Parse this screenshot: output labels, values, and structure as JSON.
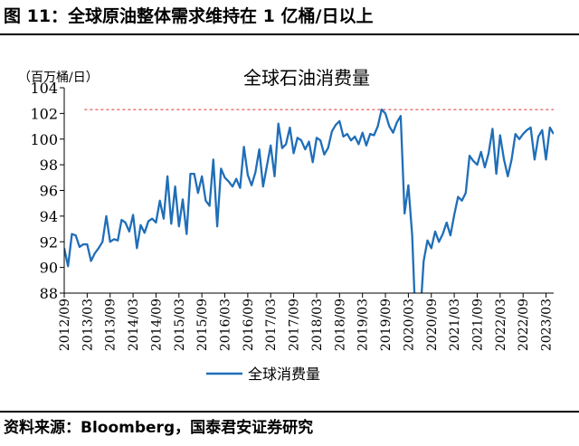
{
  "figure": {
    "title": "图 11：全球原油整体需求维持在 1 亿桶/日以上",
    "source": "资料来源：Bloomberg，国泰君安证券研究"
  },
  "colors": {
    "series": "#1f6eb8",
    "reference": "#e03030"
  },
  "chart_data": {
    "type": "line",
    "title": "全球石油消费量",
    "ylabel": "（百万桶/日）",
    "xlabel": "",
    "ylim": [
      88,
      104
    ],
    "yticks": [
      88,
      90,
      92,
      94,
      96,
      98,
      100,
      102,
      104
    ],
    "xlim": [
      "2012/09",
      "2023/05"
    ],
    "xticks": [
      "2012/09",
      "2013/03",
      "2013/09",
      "2014/03",
      "2014/09",
      "2015/03",
      "2015/09",
      "2016/03",
      "2016/09",
      "2017/03",
      "2017/09",
      "2018/03",
      "2018/09",
      "2019/03",
      "2019/09",
      "2020/03",
      "2020/09",
      "2021/03",
      "2021/09",
      "2022/03",
      "2022/09",
      "2023/03"
    ],
    "legend": {
      "position": "bottom",
      "entries": [
        "全球消费量"
      ]
    },
    "reference_line": {
      "y": 102.3,
      "style": "dashed"
    },
    "series": [
      {
        "name": "全球消费量",
        "x": [
          "2012/09",
          "2012/10",
          "2012/11",
          "2012/12",
          "2013/01",
          "2013/02",
          "2013/03",
          "2013/04",
          "2013/05",
          "2013/06",
          "2013/07",
          "2013/08",
          "2013/09",
          "2013/10",
          "2013/11",
          "2013/12",
          "2014/01",
          "2014/02",
          "2014/03",
          "2014/04",
          "2014/05",
          "2014/06",
          "2014/07",
          "2014/08",
          "2014/09",
          "2014/10",
          "2014/11",
          "2014/12",
          "2015/01",
          "2015/02",
          "2015/03",
          "2015/04",
          "2015/05",
          "2015/06",
          "2015/07",
          "2015/08",
          "2015/09",
          "2015/10",
          "2015/11",
          "2015/12",
          "2016/01",
          "2016/02",
          "2016/03",
          "2016/04",
          "2016/05",
          "2016/06",
          "2016/07",
          "2016/08",
          "2016/09",
          "2016/10",
          "2016/11",
          "2016/12",
          "2017/01",
          "2017/02",
          "2017/03",
          "2017/04",
          "2017/05",
          "2017/06",
          "2017/07",
          "2017/08",
          "2017/09",
          "2017/10",
          "2017/11",
          "2017/12",
          "2018/01",
          "2018/02",
          "2018/03",
          "2018/04",
          "2018/05",
          "2018/06",
          "2018/07",
          "2018/08",
          "2018/09",
          "2018/10",
          "2018/11",
          "2018/12",
          "2019/01",
          "2019/02",
          "2019/03",
          "2019/04",
          "2019/05",
          "2019/06",
          "2019/07",
          "2019/08",
          "2019/09",
          "2019/10",
          "2019/11",
          "2019/12",
          "2020/01",
          "2020/02",
          "2020/03",
          "2020/04",
          "2020/05",
          "2020/06",
          "2020/07",
          "2020/08",
          "2020/09",
          "2020/10",
          "2020/11",
          "2020/12",
          "2021/01",
          "2021/02",
          "2021/03",
          "2021/04",
          "2021/05",
          "2021/06",
          "2021/07",
          "2021/08",
          "2021/09",
          "2021/10",
          "2021/11",
          "2021/12",
          "2022/01",
          "2022/02",
          "2022/03",
          "2022/04",
          "2022/05",
          "2022/06",
          "2022/07",
          "2022/08",
          "2022/09",
          "2022/10",
          "2022/11",
          "2022/12",
          "2023/01",
          "2023/02",
          "2023/03",
          "2023/04",
          "2023/05"
        ],
        "values": [
          91.5,
          90.1,
          92.6,
          92.5,
          91.6,
          91.8,
          91.8,
          90.5,
          91.1,
          91.5,
          92.0,
          94.0,
          92.0,
          92.2,
          92.1,
          93.7,
          93.5,
          92.8,
          94.1,
          91.5,
          93.3,
          92.7,
          93.6,
          93.8,
          93.5,
          95.2,
          93.8,
          97.1,
          93.4,
          96.3,
          93.2,
          95.3,
          92.6,
          97.3,
          97.3,
          95.8,
          97.1,
          95.2,
          94.8,
          98.4,
          93.2,
          97.7,
          97.0,
          96.7,
          96.3,
          96.9,
          96.2,
          99.4,
          97.2,
          96.4,
          97.4,
          99.2,
          96.3,
          97.9,
          99.5,
          97.1,
          101.2,
          99.3,
          99.6,
          100.9,
          98.9,
          100.1,
          99.9,
          99.2,
          99.8,
          98.2,
          100.1,
          99.9,
          98.8,
          99.3,
          100.6,
          101.1,
          101.4,
          100.2,
          100.4,
          99.9,
          100.2,
          99.6,
          100.5,
          99.5,
          100.4,
          100.3,
          101.0,
          102.3,
          102.0,
          101.0,
          100.5,
          101.3,
          101.8,
          94.2,
          96.4,
          92.5,
          84.8,
          85.8,
          90.5,
          92.1,
          91.5,
          92.8,
          92.0,
          92.6,
          93.5,
          92.5,
          94.1,
          95.5,
          95.2,
          95.8,
          98.7,
          98.3,
          98.0,
          99.0,
          97.8,
          98.9,
          100.8,
          97.3,
          100.3,
          98.4,
          97.1,
          98.4,
          100.4,
          100.0,
          100.4,
          100.7,
          100.9,
          98.4,
          100.2,
          100.7,
          98.4,
          100.9,
          100.4
        ]
      }
    ]
  }
}
